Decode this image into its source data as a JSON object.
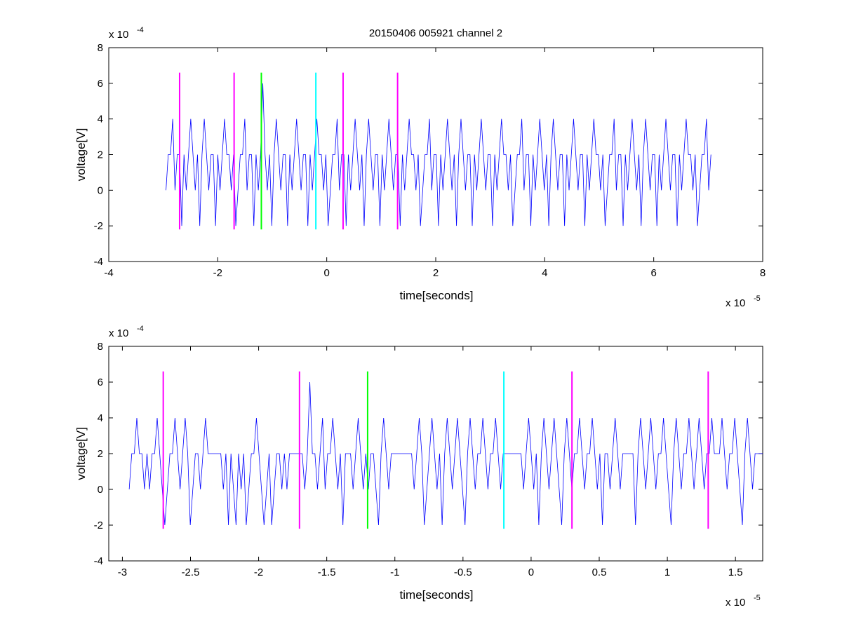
{
  "figure": {
    "title": "20150406 005921 channel 2"
  },
  "chart_data": [
    {
      "type": "line",
      "title": "20150406 005921 channel 2",
      "xlabel": "time[seconds]",
      "ylabel": "voltage[V]",
      "x_exponent_label": "x 10",
      "x_exponent": "-5",
      "y_exponent_label": "x 10",
      "y_exponent": "-4",
      "xlim": [
        -4,
        8
      ],
      "ylim": [
        -4,
        8
      ],
      "xticks": [
        -4,
        -2,
        0,
        2,
        4,
        6,
        8
      ],
      "xtick_labels": [
        "-4",
        "-2",
        "0",
        "2",
        "4",
        "6",
        "8"
      ],
      "yticks": [
        -4,
        -2,
        0,
        2,
        4,
        6,
        8
      ],
      "ytick_labels": [
        "-4",
        "-2",
        "0",
        "2",
        "4",
        "6",
        "8"
      ],
      "grid": false,
      "series": [
        {
          "color": "#0000ff",
          "x_range": [
            -2.95,
            7.05
          ],
          "values_note_levels": [
            -2,
            0,
            2,
            4,
            6
          ],
          "values": [
            0,
            2,
            2,
            4,
            0,
            2,
            2,
            -2,
            2,
            0,
            2,
            4,
            2,
            0,
            2,
            -2,
            2,
            4,
            2,
            0,
            2,
            2,
            -2,
            2,
            0,
            2,
            4,
            2,
            2,
            0,
            2,
            -2,
            0,
            2,
            2,
            4,
            0,
            2,
            2,
            -2,
            2,
            0,
            2,
            6,
            2,
            0,
            2,
            -2,
            2,
            4,
            2,
            0,
            2,
            2,
            -2,
            2,
            0,
            2,
            4,
            2,
            0,
            2,
            2,
            -2,
            2,
            0,
            2,
            4,
            2,
            2,
            0,
            2,
            -2,
            0,
            2,
            2,
            4,
            0,
            2,
            2,
            -2,
            2,
            0,
            2,
            4,
            2,
            0,
            2,
            -2,
            2,
            4,
            2,
            0,
            2,
            2,
            -2,
            2,
            0,
            2,
            4,
            2,
            0,
            2,
            2,
            -2,
            2,
            0,
            2,
            4,
            2,
            2,
            0,
            2,
            -2,
            0,
            2,
            2,
            4,
            0,
            2,
            2,
            -2,
            2,
            0,
            2,
            4,
            2,
            0,
            2,
            -2,
            2,
            4,
            2,
            0,
            2,
            2,
            -2,
            2,
            0,
            2,
            4,
            2,
            0,
            2,
            2,
            -2,
            2,
            0,
            2,
            4,
            2,
            2,
            0,
            2,
            -2,
            0,
            2,
            2,
            4,
            0,
            2,
            2,
            -2,
            2,
            0,
            2,
            4,
            2,
            0,
            2,
            -2,
            2,
            4,
            2,
            0,
            2,
            2,
            -2,
            2,
            0,
            2,
            4,
            2,
            0,
            2,
            2,
            -2,
            2,
            0,
            2,
            4,
            2,
            2,
            0,
            2,
            -2,
            0,
            2,
            2,
            4,
            0,
            2,
            2,
            -2,
            2,
            0,
            2,
            4,
            2,
            0,
            2,
            -2,
            2,
            4,
            2,
            0,
            2,
            2,
            -2,
            2,
            0,
            2,
            4,
            2,
            0,
            2,
            2,
            -2,
            2,
            0,
            2,
            4,
            2,
            2,
            0,
            2,
            -2,
            0,
            2,
            2,
            4,
            0,
            2
          ]
        }
      ],
      "markers": [
        {
          "x": -2.7,
          "color": "#ff00ff"
        },
        {
          "x": -1.7,
          "color": "#ff00ff"
        },
        {
          "x": -1.2,
          "color": "#00ff00"
        },
        {
          "x": -0.2,
          "color": "#00ffff"
        },
        {
          "x": 0.3,
          "color": "#ff00ff"
        },
        {
          "x": 1.3,
          "color": "#ff00ff"
        }
      ],
      "marker_y_range": [
        -2.2,
        6.6
      ]
    },
    {
      "type": "line",
      "title": "",
      "xlabel": "time[seconds]",
      "ylabel": "voltage[V]",
      "x_exponent_label": "x 10",
      "x_exponent": "-5",
      "y_exponent_label": "x 10",
      "y_exponent": "-4",
      "xlim": [
        -3.1,
        1.7
      ],
      "ylim": [
        -4,
        8
      ],
      "xticks": [
        -3,
        -2.5,
        -2,
        -1.5,
        -1,
        -0.5,
        0,
        0.5,
        1,
        1.5
      ],
      "xtick_labels": [
        "-3",
        "-2.5",
        "-2",
        "-1.5",
        "-1",
        "-0.5",
        "0",
        "0.5",
        "1",
        "1.5"
      ],
      "yticks": [
        -4,
        -2,
        0,
        2,
        4,
        6,
        8
      ],
      "ytick_labels": [
        "-4",
        "-2",
        "0",
        "2",
        "4",
        "6",
        "8"
      ],
      "grid": false,
      "series": [
        {
          "color": "#0000ff",
          "x_range": [
            -2.95,
            1.7
          ],
          "values": [
            0,
            2,
            2,
            4,
            2,
            2,
            0,
            2,
            0,
            2,
            2,
            4,
            2,
            0,
            -2,
            0,
            2,
            2,
            4,
            2,
            0,
            2,
            4,
            2,
            -2,
            0,
            2,
            2,
            0,
            2,
            4,
            2,
            2,
            2,
            2,
            2,
            2,
            0,
            2,
            -2,
            2,
            0,
            -2,
            2,
            0,
            2,
            -2,
            0,
            2,
            2,
            4,
            2,
            0,
            -2,
            0,
            2,
            -2,
            0,
            2,
            2,
            0,
            2,
            0,
            2,
            2,
            2,
            2,
            2,
            2,
            0,
            2,
            6,
            2,
            2,
            0,
            2,
            4,
            0,
            2,
            2,
            4,
            2,
            0,
            2,
            -2,
            2,
            2,
            2,
            0,
            2,
            4,
            2,
            0,
            2,
            0,
            2,
            2,
            0,
            -2,
            2,
            4,
            2,
            0,
            2,
            2,
            2,
            2,
            2,
            2,
            2,
            2,
            2,
            0,
            2,
            4,
            2,
            -2,
            0,
            2,
            4,
            2,
            0,
            2,
            -2,
            2,
            4,
            2,
            0,
            2,
            4,
            2,
            0,
            -2,
            2,
            4,
            2,
            0,
            2,
            2,
            4,
            2,
            0,
            2,
            2,
            4,
            2,
            0,
            2,
            2,
            2,
            2,
            2,
            2,
            2,
            2,
            0,
            2,
            4,
            2,
            0,
            2,
            -2,
            2,
            4,
            2,
            0,
            2,
            4,
            2,
            0,
            -2,
            2,
            4,
            2,
            0,
            2,
            2,
            4,
            2,
            0,
            2,
            2,
            4,
            2,
            0,
            2,
            -2,
            2,
            2,
            0,
            2,
            4,
            2,
            0,
            2,
            2,
            2,
            2,
            2,
            -2,
            2,
            4,
            2,
            0,
            2,
            4,
            2,
            0,
            2,
            2,
            4,
            2,
            0,
            -2,
            2,
            4,
            2,
            0,
            2,
            2,
            4,
            2,
            0,
            2,
            4,
            2,
            0,
            2,
            2,
            4,
            2,
            2,
            2,
            4,
            2,
            0,
            2,
            2,
            4,
            2,
            0,
            -2,
            2,
            4,
            2,
            0,
            2,
            2,
            2,
            2
          ]
        }
      ],
      "markers": [
        {
          "x": -2.7,
          "color": "#ff00ff"
        },
        {
          "x": -1.7,
          "color": "#ff00ff"
        },
        {
          "x": -1.2,
          "color": "#00ff00"
        },
        {
          "x": -0.2,
          "color": "#00ffff"
        },
        {
          "x": 0.3,
          "color": "#ff00ff"
        },
        {
          "x": 1.3,
          "color": "#ff00ff"
        }
      ],
      "marker_y_range": [
        -2.2,
        6.6
      ]
    }
  ]
}
